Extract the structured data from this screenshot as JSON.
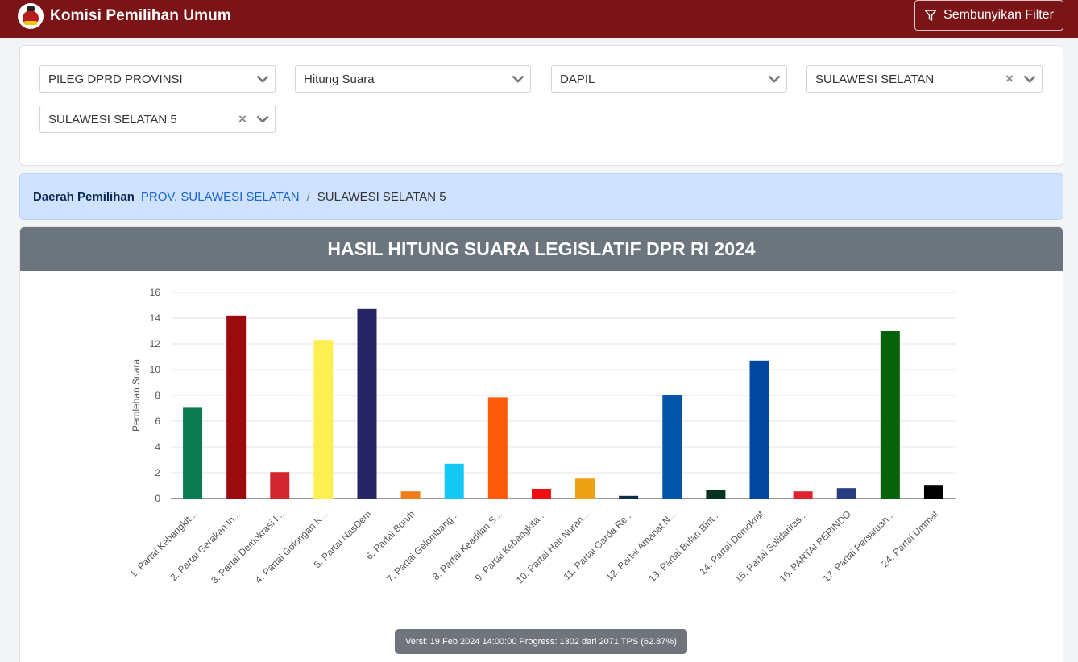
{
  "header": {
    "brand": "Komisi Pemilihan Umum",
    "filter_toggle_label": "Sembunyikan Filter"
  },
  "filters": {
    "election": "PILEG DPRD PROVINSI",
    "mode": "Hitung Suara",
    "level": "DAPIL",
    "province": "SULAWESI SELATAN",
    "district": "SULAWESI SELATAN 5"
  },
  "breadcrumb": {
    "label": "Daerah Pemilihan",
    "link": "PROV. SULAWESI SELATAN",
    "separator": "/",
    "current": "SULAWESI SELATAN 5"
  },
  "chart_title": "HASIL HITUNG SUARA LEGISLATIF DPR RI 2024",
  "chart_data": {
    "type": "bar",
    "title": "HASIL HITUNG SUARA LEGISLATIF DPR RI 2024",
    "xlabel": "",
    "ylabel": "Perolehan Suara",
    "ylim": [
      0,
      16
    ],
    "yticks": [
      0,
      2,
      4,
      6,
      8,
      10,
      12,
      14,
      16
    ],
    "grid": true,
    "categories": [
      "1. Partai Kebangkit...",
      "2. Partai Gerakan In...",
      "3. Partai Demokrasi I...",
      "4. Partai Golongan K...",
      "5. Partai NasDem",
      "6. Partai Buruh",
      "7. Partai Gelombang...",
      "8. Partai Keadilan S...",
      "9. Partai Kebangkita...",
      "10. Partai Hati Nuran...",
      "11. Partai Garda Re...",
      "12. Partai Amanat N...",
      "13. Partai Bulan Bint...",
      "14. Partai Demokrat",
      "15. Partai Solidaritas...",
      "16. PARTAI PERINDO",
      "17. Partai Persatuan...",
      "24. Partai Ummat"
    ],
    "values": [
      7.1,
      14.2,
      2.05,
      12.3,
      14.7,
      0.55,
      2.7,
      7.85,
      0.75,
      1.55,
      0.2,
      8.0,
      0.65,
      10.7,
      0.55,
      0.8,
      13.0,
      1.05
    ],
    "colors": [
      "#0b7a50",
      "#9b0a0c",
      "#d32630",
      "#fcef52",
      "#262462",
      "#f07c1b",
      "#14c8f4",
      "#fd5a09",
      "#f20e12",
      "#eda114",
      "#0e2e4b",
      "#0355a8",
      "#053520",
      "#01479d",
      "#e0242f",
      "#273d7e",
      "#066309",
      "#000000"
    ]
  },
  "version_info": "Versi: 19 Feb 2024 14:00:00 Progress: 1302 dari 2071 TPS (62.87%)"
}
